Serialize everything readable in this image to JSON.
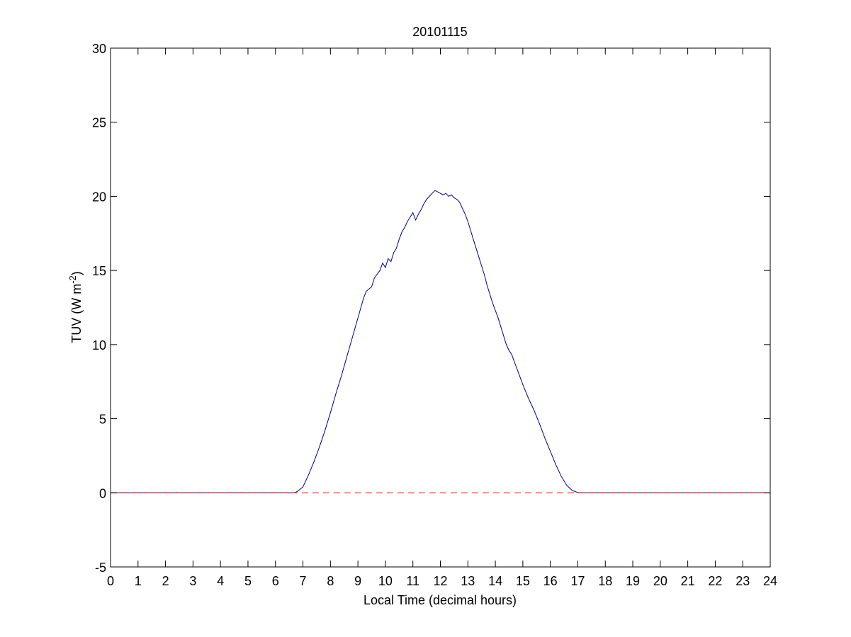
{
  "chart_data": {
    "type": "line",
    "title": "20101115",
    "xlabel": "Local Time (decimal hours)",
    "ylabel": {
      "text": "TUV (W m",
      "superscript": "-2",
      "suffix": ")"
    },
    "xlim": [
      0,
      24
    ],
    "ylim": [
      -5,
      30
    ],
    "xticks": [
      "0",
      "1",
      "2",
      "3",
      "4",
      "5",
      "6",
      "7",
      "8",
      "9",
      "10",
      "11",
      "12",
      "13",
      "14",
      "15",
      "16",
      "17",
      "18",
      "19",
      "20",
      "21",
      "22",
      "23",
      "24"
    ],
    "yticks": [
      "-5",
      "0",
      "5",
      "10",
      "15",
      "20",
      "25",
      "30"
    ],
    "grid": false,
    "legend": "none",
    "series": [
      {
        "style": "solid",
        "color": "#00008B",
        "x": [
          0,
          6.7,
          6.8,
          7.0,
          7.2,
          7.4,
          7.6,
          7.8,
          8.0,
          8.2,
          8.4,
          8.6,
          8.8,
          9.0,
          9.2,
          9.3,
          9.5,
          9.6,
          9.8,
          9.9,
          10.0,
          10.1,
          10.2,
          10.3,
          10.4,
          10.5,
          10.6,
          10.7,
          10.8,
          10.9,
          11.0,
          11.1,
          11.2,
          11.3,
          11.4,
          11.5,
          11.6,
          11.7,
          11.8,
          11.9,
          12.0,
          12.1,
          12.2,
          12.3,
          12.4,
          12.5,
          12.6,
          12.7,
          12.8,
          12.9,
          13.0,
          13.1,
          13.2,
          13.3,
          13.4,
          13.5,
          13.6,
          13.7,
          13.8,
          13.9,
          14.0,
          14.1,
          14.2,
          14.3,
          14.4,
          14.5,
          14.6,
          14.7,
          14.8,
          14.9,
          15.0,
          15.2,
          15.4,
          15.6,
          15.8,
          16.0,
          16.2,
          16.4,
          16.6,
          16.8,
          17.0,
          17.1,
          17.2,
          24
        ],
        "y": [
          0,
          0,
          0.1,
          0.4,
          1.2,
          2.1,
          3.1,
          4.2,
          5.4,
          6.7,
          7.9,
          9.2,
          10.5,
          11.8,
          13.1,
          13.6,
          13.9,
          14.5,
          15.0,
          15.5,
          15.2,
          15.8,
          15.6,
          16.2,
          16.5,
          17.1,
          17.6,
          17.9,
          18.3,
          18.6,
          18.9,
          18.4,
          18.8,
          19.1,
          19.5,
          19.8,
          20.0,
          20.2,
          20.4,
          20.3,
          20.2,
          20.1,
          20.2,
          20.0,
          20.1,
          19.9,
          19.8,
          19.6,
          19.2,
          18.8,
          18.3,
          17.7,
          17.1,
          16.5,
          15.9,
          15.3,
          14.7,
          14.0,
          13.4,
          12.8,
          12.3,
          11.8,
          11.2,
          10.6,
          10.0,
          9.6,
          9.3,
          8.8,
          8.3,
          7.8,
          7.3,
          6.4,
          5.6,
          4.7,
          3.7,
          2.8,
          1.9,
          1.1,
          0.5,
          0.15,
          0.02,
          0,
          0,
          0
        ]
      },
      {
        "style": "dashed",
        "color": "#FF0000",
        "x": [
          0,
          24
        ],
        "y": [
          0,
          0
        ]
      }
    ]
  }
}
